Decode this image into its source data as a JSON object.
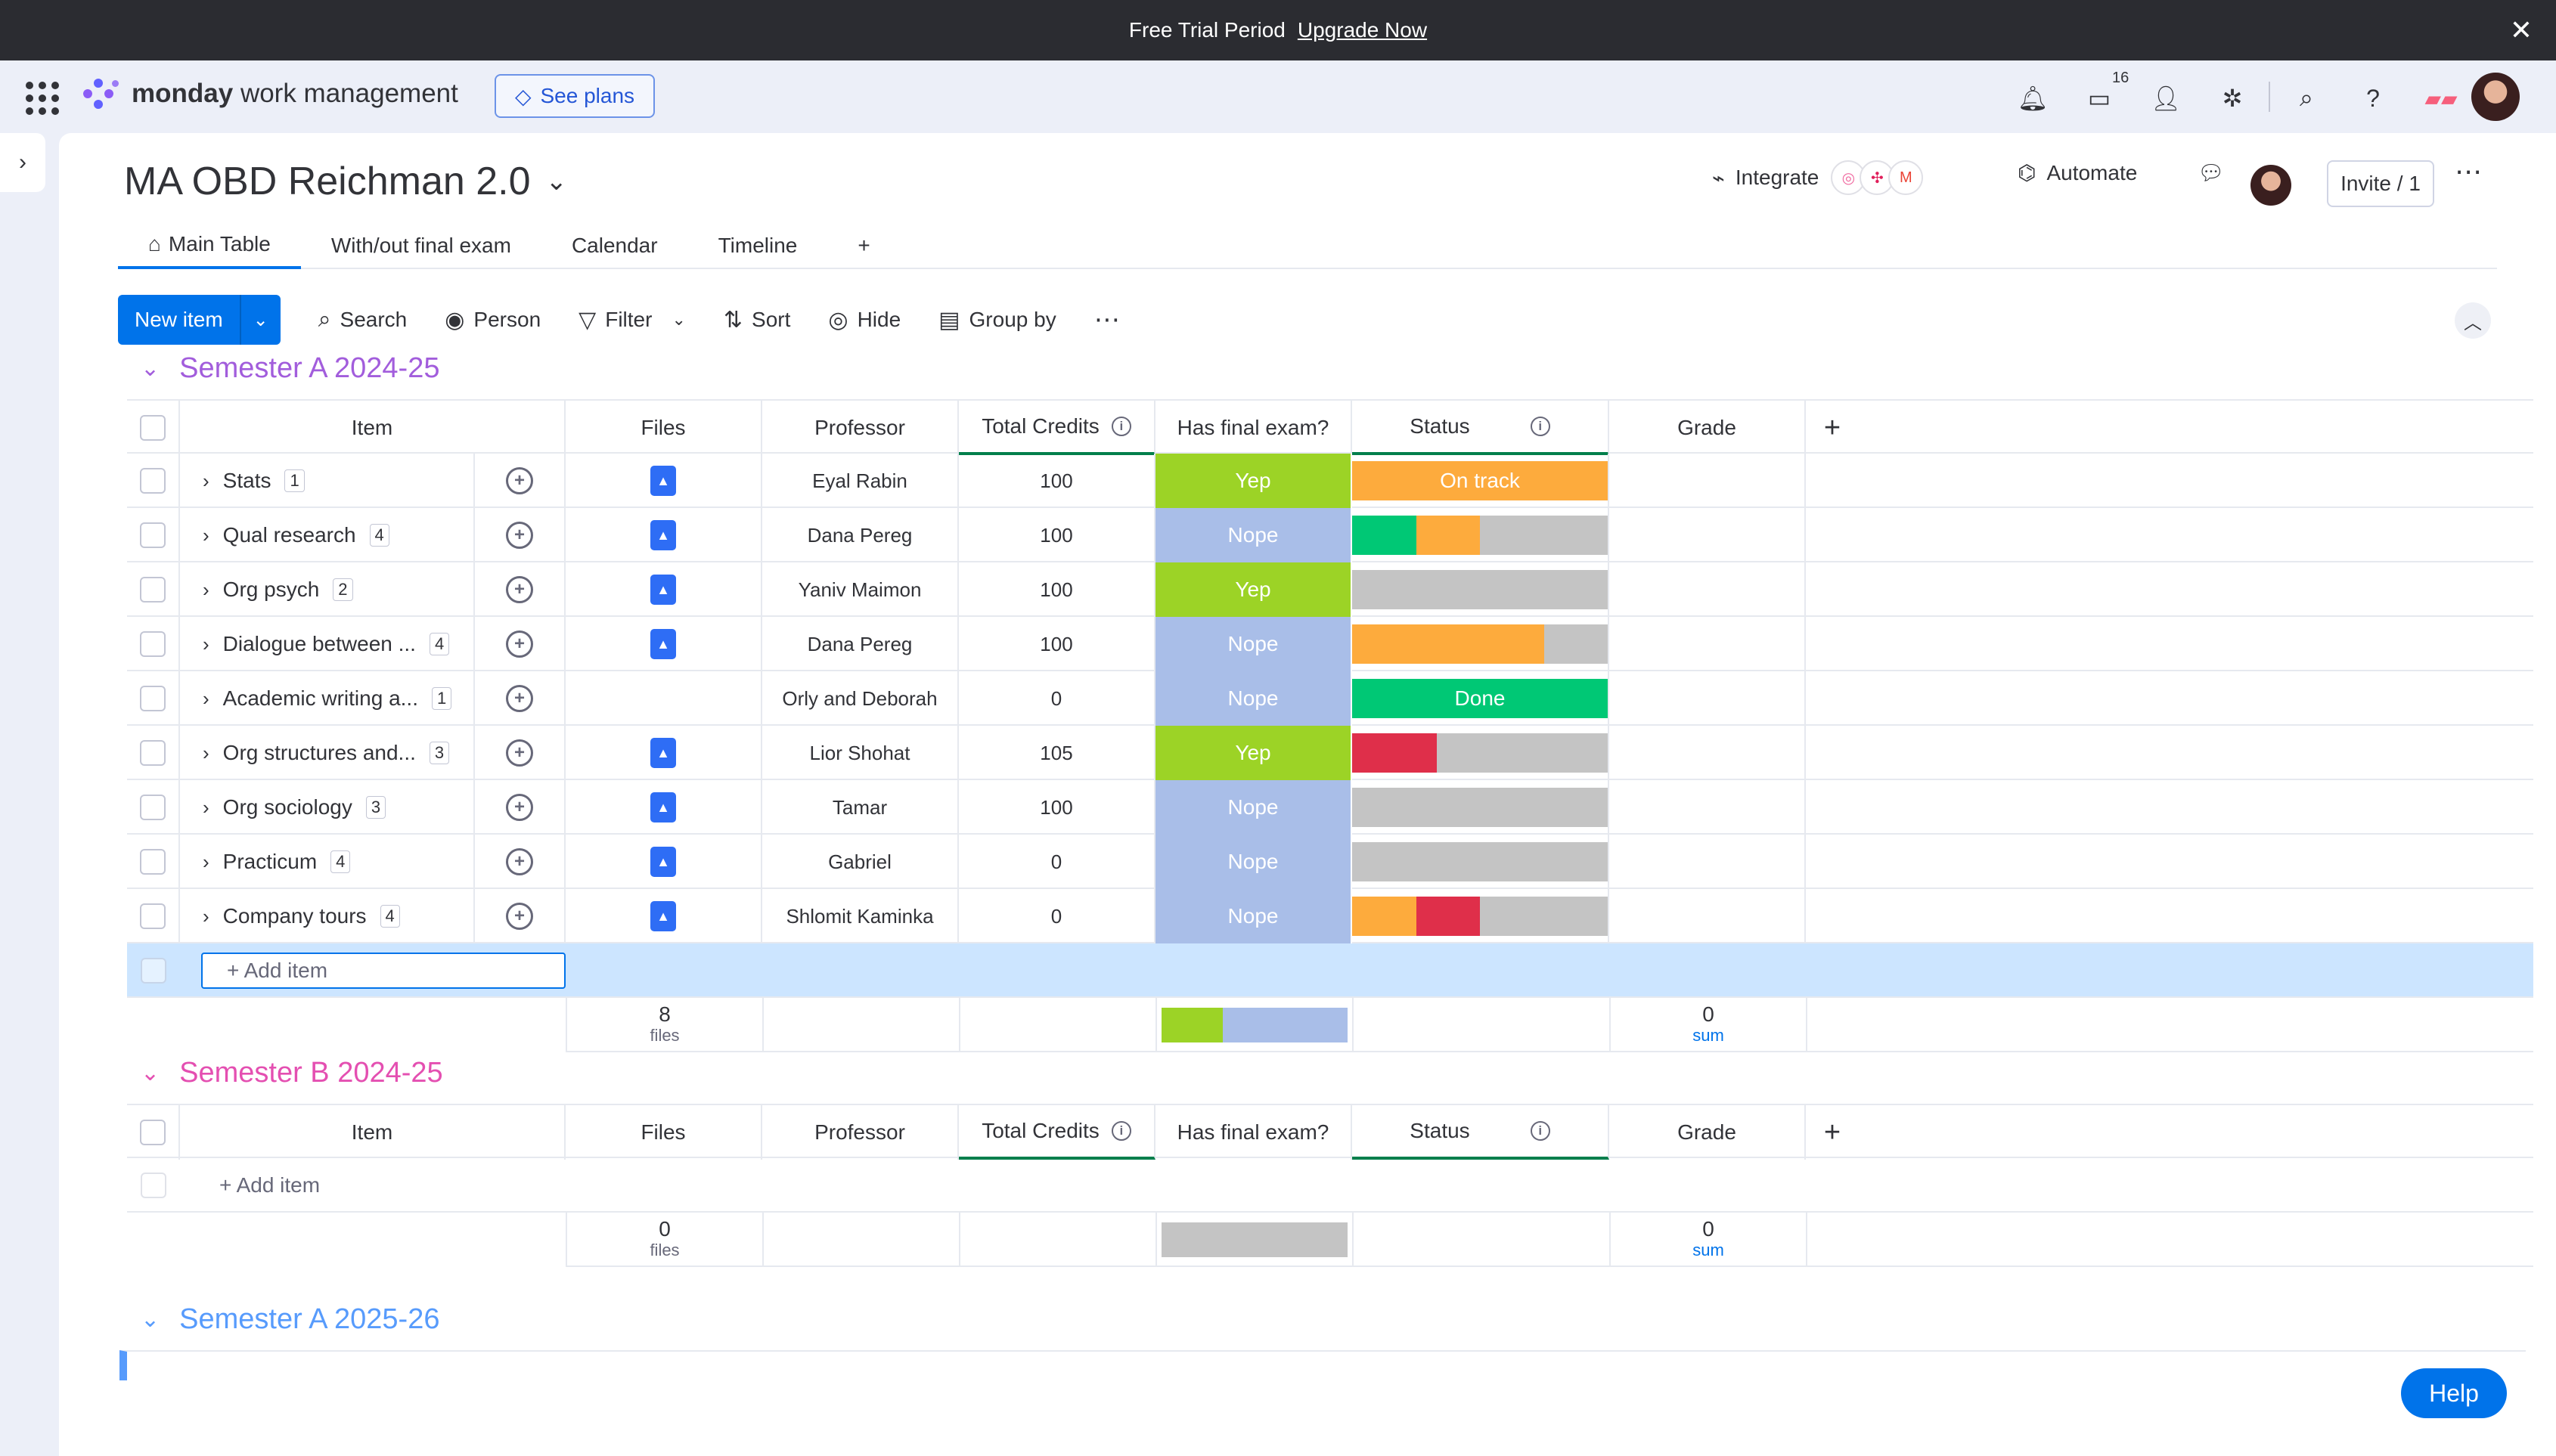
{
  "trial": {
    "text": "Free Trial Period",
    "link": "Upgrade Now"
  },
  "topbar": {
    "brand": "monday",
    "product": "work management",
    "see_plans": "See plans",
    "inbox_badge": "16"
  },
  "board": {
    "title": "MA OBD Reichman 2.0",
    "integrate": "Integrate",
    "automate": "Automate",
    "invite": "Invite / 1",
    "tabs": [
      {
        "label": "Main Table"
      },
      {
        "label": "With/out final exam"
      },
      {
        "label": "Calendar"
      },
      {
        "label": "Timeline"
      },
      {
        "label": "+"
      }
    ]
  },
  "toolbar": {
    "new_item": "New item",
    "search": "Search",
    "person": "Person",
    "filter": "Filter",
    "sort": "Sort",
    "hide": "Hide",
    "group_by": "Group by"
  },
  "columns": {
    "item": "Item",
    "files": "Files",
    "professor": "Professor",
    "credits": "Total Credits",
    "exam": "Has final exam?",
    "status": "Status",
    "grade": "Grade",
    "add": "+"
  },
  "colors": {
    "yep": "#9cd326",
    "nope": "#a9bee8",
    "ontrack": "#fdab3d",
    "done": "#00c875",
    "stuck": "#df2f4a",
    "empty": "#c4c4c4",
    "groupA": "#a25ddc",
    "groupB": "#e44fb1",
    "groupC": "#579bfc"
  },
  "groups": [
    {
      "title": "Semester A 2024-25",
      "rows": [
        {
          "name": "Stats",
          "count": "1",
          "file": true,
          "professor": "Eyal Rabin",
          "credits": "100",
          "exam": "Yep",
          "status_label": "On track",
          "status": [
            [
              "ontrack",
              1
            ]
          ]
        },
        {
          "name": "Qual research",
          "count": "4",
          "file": true,
          "professor": "Dana Pereg",
          "credits": "100",
          "exam": "Nope",
          "status_label": "",
          "status": [
            [
              "done",
              0.25
            ],
            [
              "ontrack",
              0.25
            ],
            [
              "empty",
              0.5
            ]
          ]
        },
        {
          "name": "Org psych",
          "count": "2",
          "file": true,
          "professor": "Yaniv Maimon",
          "credits": "100",
          "exam": "Yep",
          "status_label": "",
          "status": [
            [
              "empty",
              1
            ]
          ]
        },
        {
          "name": "Dialogue between ...",
          "count": "4",
          "file": true,
          "professor": "Dana Pereg",
          "credits": "100",
          "exam": "Nope",
          "status_label": "",
          "status": [
            [
              "ontrack",
              0.75
            ],
            [
              "empty",
              0.25
            ]
          ]
        },
        {
          "name": "Academic writing a...",
          "count": "1",
          "file": false,
          "professor": "Orly and Deborah",
          "credits": "0",
          "exam": "Nope",
          "status_label": "Done",
          "status": [
            [
              "done",
              1
            ]
          ]
        },
        {
          "name": "Org structures and...",
          "count": "3",
          "file": true,
          "professor": "Lior Shohat",
          "credits": "105",
          "exam": "Yep",
          "status_label": "",
          "status": [
            [
              "stuck",
              0.33
            ],
            [
              "empty",
              0.67
            ]
          ]
        },
        {
          "name": "Org sociology",
          "count": "3",
          "file": true,
          "professor": "Tamar",
          "credits": "100",
          "exam": "Nope",
          "status_label": "",
          "status": [
            [
              "empty",
              1
            ]
          ]
        },
        {
          "name": "Practicum",
          "count": "4",
          "file": true,
          "professor": "Gabriel",
          "credits": "0",
          "exam": "Nope",
          "status_label": "",
          "status": [
            [
              "empty",
              1
            ]
          ]
        },
        {
          "name": "Company tours",
          "count": "4",
          "file": true,
          "professor": "Shlomit Kaminka",
          "credits": "0",
          "exam": "Nope",
          "status_label": "",
          "status": [
            [
              "ontrack",
              0.25
            ],
            [
              "stuck",
              0.25
            ],
            [
              "empty",
              0.5
            ]
          ]
        }
      ],
      "add_item": "+ Add item",
      "summary": {
        "files": "8",
        "files_label": "files",
        "grade": "0",
        "grade_label": "sum",
        "exam_split": [
          [
            "yep",
            0.33
          ],
          [
            "nope",
            0.67
          ]
        ]
      }
    },
    {
      "title": "Semester B 2024-25",
      "rows": [],
      "add_item": "+ Add item",
      "summary": {
        "files": "0",
        "files_label": "files",
        "grade": "0",
        "grade_label": "sum",
        "exam_split": [
          [
            "empty",
            1
          ]
        ]
      }
    },
    {
      "title": "Semester A 2025-26"
    }
  ],
  "help": "Help"
}
